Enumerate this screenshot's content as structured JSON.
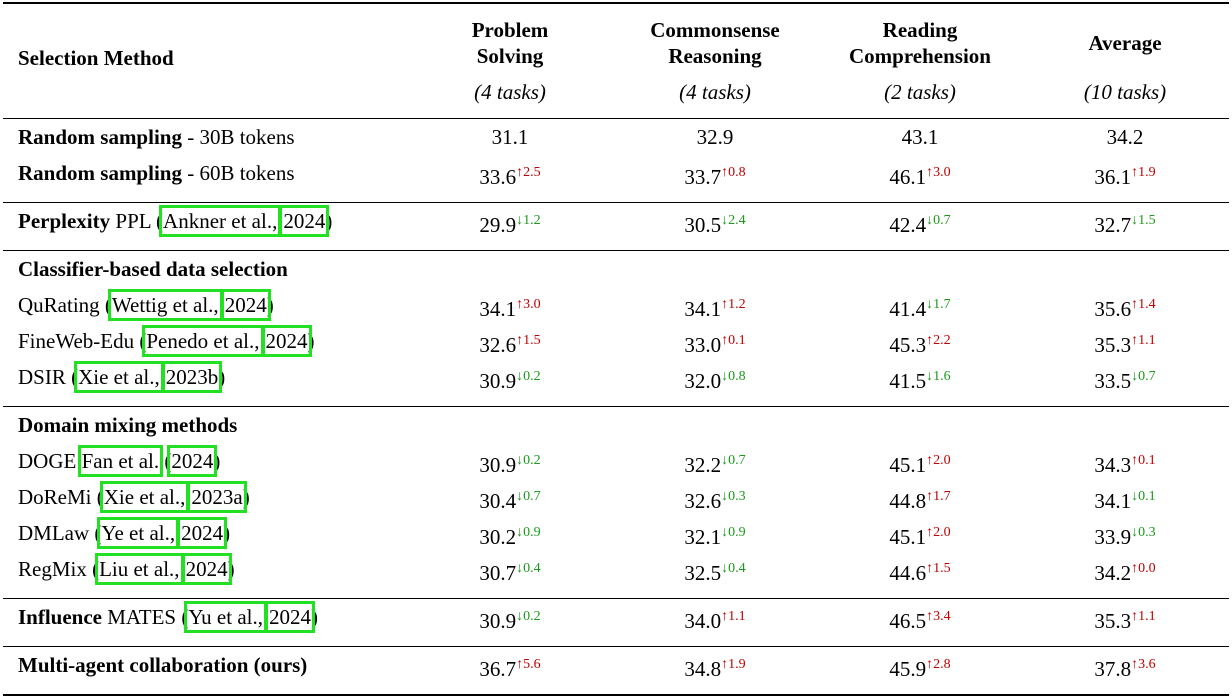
{
  "header": {
    "method": "Selection Method",
    "columns": [
      {
        "name": [
          "Problem",
          "Solving"
        ],
        "tasks": "(4 tasks)"
      },
      {
        "name": [
          "Commonsense",
          "Reasoning"
        ],
        "tasks": "(4 tasks)"
      },
      {
        "name": [
          "Reading",
          "Comprehension"
        ],
        "tasks": "(2 tasks)"
      },
      {
        "name": [
          "Average"
        ],
        "tasks": "(10 tasks)"
      }
    ]
  },
  "groups": [
    {
      "rows": [
        {
          "method": [
            {
              "text": "Random sampling",
              "style": "bold"
            },
            {
              "text": " - 30B tokens",
              "style": "normal"
            }
          ],
          "cells": [
            {
              "value": "31.1"
            },
            {
              "value": "32.9"
            },
            {
              "value": "43.1"
            },
            {
              "value": "34.2"
            }
          ]
        },
        {
          "method": [
            {
              "text": "Random sampling",
              "style": "bold"
            },
            {
              "text": " - 60B tokens",
              "style": "normal"
            }
          ],
          "cells": [
            {
              "value": "33.6",
              "delta": "↑2.5"
            },
            {
              "value": "33.7",
              "delta": "↑0.8"
            },
            {
              "value": "46.1",
              "delta": "↑3.0"
            },
            {
              "value": "36.1",
              "delta": "↑1.9"
            }
          ]
        }
      ]
    },
    {
      "rows": [
        {
          "method": [
            {
              "text": "Perplexity",
              "style": "bold"
            },
            {
              "text": " PPL (",
              "style": "normal"
            },
            {
              "text": "Ankner et al.,",
              "style": "cite"
            },
            {
              "text": "2024",
              "style": "cite"
            },
            {
              "text": ")",
              "style": "normal"
            }
          ],
          "cells": [
            {
              "value": "29.9",
              "delta": "↓1.2"
            },
            {
              "value": "30.5",
              "delta": "↓2.4"
            },
            {
              "value": "42.4",
              "delta": "↓0.7"
            },
            {
              "value": "32.7",
              "delta": "↓1.5"
            }
          ]
        }
      ]
    },
    {
      "heading": "Classifier-based data selection",
      "rows": [
        {
          "method": [
            {
              "text": "QuRating (",
              "style": "normal"
            },
            {
              "text": "Wettig et al.,",
              "style": "cite"
            },
            {
              "text": "2024",
              "style": "cite"
            },
            {
              "text": ")",
              "style": "normal"
            }
          ],
          "cells": [
            {
              "value": "34.1",
              "delta": "↑3.0"
            },
            {
              "value": "34.1",
              "delta": "↑1.2"
            },
            {
              "value": "41.4",
              "delta": "↓1.7"
            },
            {
              "value": "35.6",
              "delta": "↑1.4"
            }
          ]
        },
        {
          "method": [
            {
              "text": "FineWeb-Edu (",
              "style": "normal"
            },
            {
              "text": "Penedo et al.,",
              "style": "cite"
            },
            {
              "text": "2024",
              "style": "cite"
            },
            {
              "text": ")",
              "style": "normal"
            }
          ],
          "cells": [
            {
              "value": "32.6",
              "delta": "↑1.5"
            },
            {
              "value": "33.0",
              "delta": "↑0.1"
            },
            {
              "value": "45.3",
              "delta": "↑2.2"
            },
            {
              "value": "35.3",
              "delta": "↑1.1"
            }
          ]
        },
        {
          "method": [
            {
              "text": "DSIR (",
              "style": "normal"
            },
            {
              "text": "Xie et al.,",
              "style": "cite"
            },
            {
              "text": "2023b",
              "style": "cite"
            },
            {
              "text": ")",
              "style": "normal"
            }
          ],
          "cells": [
            {
              "value": "30.9",
              "delta": "↓0.2"
            },
            {
              "value": "32.0",
              "delta": "↓0.8"
            },
            {
              "value": "41.5",
              "delta": "↓1.6"
            },
            {
              "value": "33.5",
              "delta": "↓0.7"
            }
          ]
        }
      ]
    },
    {
      "heading": "Domain mixing methods",
      "rows": [
        {
          "method": [
            {
              "text": "DOGE ",
              "style": "normal"
            },
            {
              "text": "Fan et al.",
              "style": "cite"
            },
            {
              "text": " (",
              "style": "normal"
            },
            {
              "text": "2024",
              "style": "cite"
            },
            {
              "text": ")",
              "style": "normal"
            }
          ],
          "cells": [
            {
              "value": "30.9",
              "delta": "↓0.2"
            },
            {
              "value": "32.2",
              "delta": "↓0.7"
            },
            {
              "value": "45.1",
              "delta": "↑2.0"
            },
            {
              "value": "34.3",
              "delta": "↑0.1"
            }
          ]
        },
        {
          "method": [
            {
              "text": "DoReMi (",
              "style": "normal"
            },
            {
              "text": "Xie et al.,",
              "style": "cite"
            },
            {
              "text": "2023a",
              "style": "cite"
            },
            {
              "text": ")",
              "style": "normal"
            }
          ],
          "cells": [
            {
              "value": "30.4",
              "delta": "↓0.7"
            },
            {
              "value": "32.6",
              "delta": "↓0.3"
            },
            {
              "value": "44.8",
              "delta": "↑1.7"
            },
            {
              "value": "34.1",
              "delta": "↓0.1"
            }
          ]
        },
        {
          "method": [
            {
              "text": "DMLaw (",
              "style": "normal"
            },
            {
              "text": "Ye et al.,",
              "style": "cite"
            },
            {
              "text": "2024",
              "style": "cite"
            },
            {
              "text": ")",
              "style": "normal"
            }
          ],
          "cells": [
            {
              "value": "30.2",
              "delta": "↓0.9"
            },
            {
              "value": "32.1",
              "delta": "↓0.9"
            },
            {
              "value": "45.1",
              "delta": "↑2.0"
            },
            {
              "value": "33.9",
              "delta": "↓0.3"
            }
          ]
        },
        {
          "method": [
            {
              "text": "RegMix (",
              "style": "normal"
            },
            {
              "text": "Liu et al.,",
              "style": "cite"
            },
            {
              "text": "2024",
              "style": "cite"
            },
            {
              "text": ")",
              "style": "normal"
            }
          ],
          "cells": [
            {
              "value": "30.7",
              "delta": "↓0.4"
            },
            {
              "value": "32.5",
              "delta": "↓0.4"
            },
            {
              "value": "44.6",
              "delta": "↑1.5"
            },
            {
              "value": "34.2",
              "delta": "↑0.0"
            }
          ]
        }
      ]
    },
    {
      "rows": [
        {
          "method": [
            {
              "text": "Influence",
              "style": "bold"
            },
            {
              "text": " MATES (",
              "style": "normal"
            },
            {
              "text": "Yu et al.,",
              "style": "cite"
            },
            {
              "text": "2024",
              "style": "cite"
            },
            {
              "text": ")",
              "style": "normal"
            }
          ],
          "cells": [
            {
              "value": "30.9",
              "delta": "↓0.2"
            },
            {
              "value": "34.0",
              "delta": "↑1.1"
            },
            {
              "value": "46.5",
              "delta": "↑3.4"
            },
            {
              "value": "35.3",
              "delta": "↑1.1"
            }
          ]
        }
      ]
    },
    {
      "rows": [
        {
          "method": [
            {
              "text": "Multi-agent collaboration (ours)",
              "style": "bold"
            }
          ],
          "cells": [
            {
              "value": "36.7",
              "delta": "↑5.6"
            },
            {
              "value": "34.8",
              "delta": "↑1.9"
            },
            {
              "value": "45.9",
              "delta": "↑2.8"
            },
            {
              "value": "37.8",
              "delta": "↑3.6"
            }
          ]
        }
      ]
    }
  ]
}
